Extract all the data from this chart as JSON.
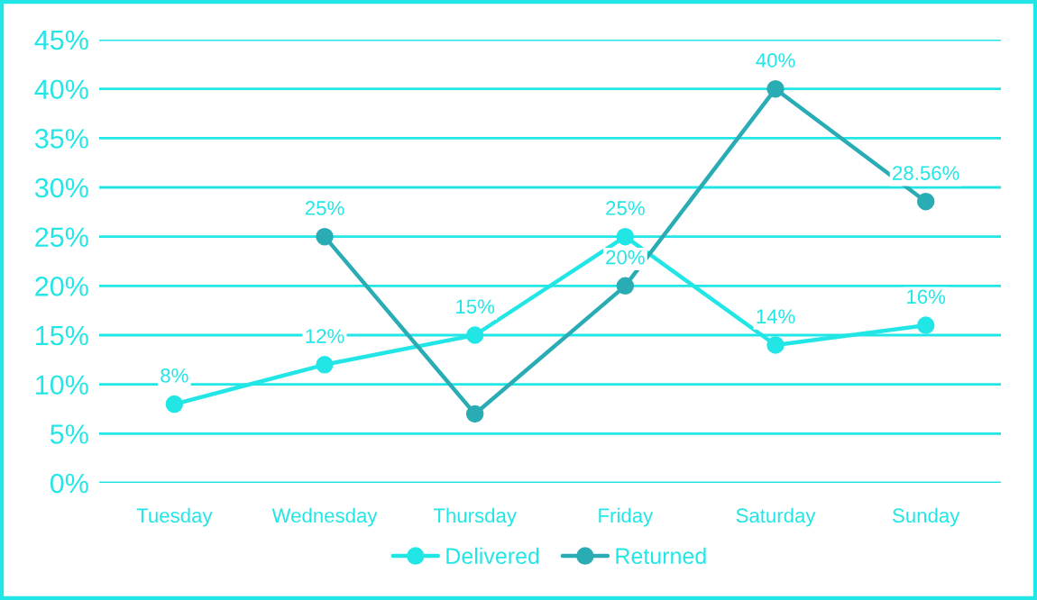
{
  "chart_data": {
    "type": "line",
    "categories": [
      "Tuesday",
      "Wednesday",
      "Thursday",
      "Friday",
      "Saturday",
      "Sunday"
    ],
    "series": [
      {
        "name": "Delivered",
        "color": "#22e6e6",
        "values": [
          8,
          12,
          15,
          25,
          14,
          16
        ],
        "value_labels": [
          "8%",
          "12%",
          "15%",
          "25%",
          "14%",
          "16%"
        ]
      },
      {
        "name": "Returned",
        "color": "#2aacb4",
        "values": [
          null,
          25,
          7,
          20,
          40,
          28.56
        ],
        "value_labels": [
          null,
          "25%",
          null,
          "20%",
          "40%",
          "28.56%"
        ]
      }
    ],
    "ylim": [
      0,
      45
    ],
    "yticks": [
      {
        "value": 0,
        "label": "0%"
      },
      {
        "value": 5,
        "label": "5%"
      },
      {
        "value": 10,
        "label": "10%"
      },
      {
        "value": 15,
        "label": "15%"
      },
      {
        "value": 20,
        "label": "20%"
      },
      {
        "value": 25,
        "label": "25%"
      },
      {
        "value": 30,
        "label": "30%"
      },
      {
        "value": 35,
        "label": "35%"
      },
      {
        "value": 40,
        "label": "40%"
      },
      {
        "value": 45,
        "label": "45%"
      }
    ],
    "grid": "y",
    "legend": "bottom",
    "marker": "circle",
    "line_style": "solid"
  }
}
